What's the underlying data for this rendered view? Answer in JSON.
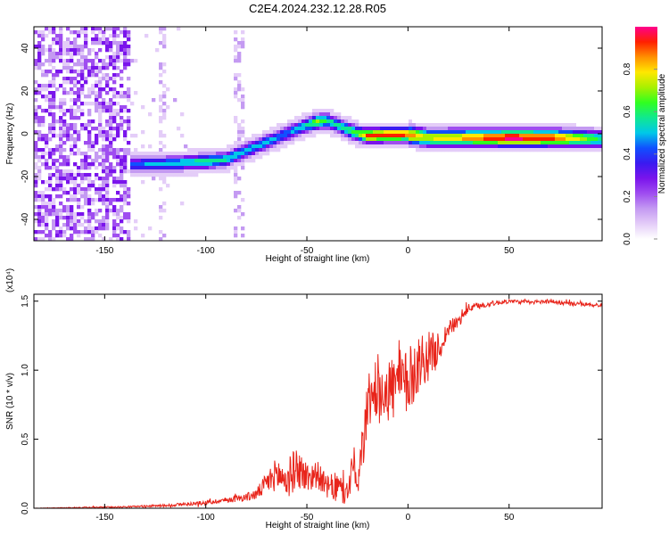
{
  "title": "C2E4.2024.232.12.28.R05",
  "colors": {
    "snr_line": "#e8241a",
    "colormap": [
      "#ffffff",
      "#e4cdf8",
      "#c49af2",
      "#9f4df0",
      "#7a14ec",
      "#3a1af0",
      "#1050ff",
      "#00c8e8",
      "#10e890",
      "#30ff20",
      "#a8f000",
      "#ffe800",
      "#ff9000",
      "#ff2000",
      "#ff008c"
    ]
  },
  "chart_data": [
    {
      "type": "heatmap",
      "title": "C2E4.2024.232.12.28.R05",
      "xlabel": "Height of straight line (km)",
      "ylabel": "Frequency (Hz)",
      "xlim": [
        -185,
        96
      ],
      "ylim": [
        -50,
        50
      ],
      "x_ticks": [
        -150,
        -100,
        -50,
        0,
        50
      ],
      "x_tick_labels": [
        "-150",
        "-100",
        "-50",
        "0",
        "50"
      ],
      "y_ticks": [
        -40,
        -20,
        0,
        20,
        40
      ],
      "y_tick_labels": [
        "-40",
        "-20",
        "0",
        "20",
        "40"
      ],
      "colorbar": {
        "label": "Normalized spectral amplitude",
        "range": [
          0,
          1
        ],
        "ticks": [
          0.0,
          0.2,
          0.4,
          0.6,
          0.8
        ],
        "tick_labels": [
          "0.0",
          "0.2",
          "0.4",
          "0.6",
          "0.8"
        ]
      },
      "ridge": {
        "description_x": [
          -136,
          -120,
          -100,
          -90,
          -80,
          -70,
          -60,
          -50,
          -45,
          -40,
          -35,
          -30,
          -25,
          -20,
          -10,
          0,
          10,
          30,
          50,
          70,
          95
        ],
        "frequency_y": [
          -14.5,
          -14,
          -13,
          -12,
          -8,
          -4,
          0,
          4,
          5.5,
          6,
          4,
          2,
          0,
          -1,
          -0.5,
          -0.5,
          -2,
          -2,
          -2,
          -2,
          -2.5
        ],
        "amplitude": [
          0.45,
          0.5,
          0.6,
          0.55,
          0.5,
          0.5,
          0.45,
          0.55,
          0.7,
          0.6,
          0.55,
          0.6,
          0.65,
          0.9,
          0.95,
          0.9,
          0.75,
          0.85,
          1.0,
          0.95,
          0.6
        ]
      },
      "noise_region": {
        "x_range": [
          -185,
          -136
        ],
        "amplitude_range": [
          0.05,
          0.3
        ]
      }
    },
    {
      "type": "line",
      "xlabel": "Height of straight line (km)",
      "ylabel": "SNR (10 * v/v)",
      "y_scale_label": "(x10⁴)",
      "xlim": [
        -185,
        96
      ],
      "ylim": [
        0,
        1.55
      ],
      "x_ticks": [
        -150,
        -100,
        -50,
        0,
        50
      ],
      "x_tick_labels": [
        "-150",
        "-100",
        "-50",
        "0",
        "50"
      ],
      "y_ticks": [
        0.0,
        0.5,
        1.0,
        1.5
      ],
      "y_tick_labels": [
        "0.0",
        "0.5",
        "1.0",
        "1.5"
      ],
      "series": [
        {
          "x": [
            -185,
            -160,
            -140,
            -120,
            -100,
            -90,
            -80,
            -75,
            -70,
            -65,
            -60,
            -55,
            -50,
            -45,
            -40,
            -35,
            -30,
            -27,
            -25,
            -22,
            -20,
            -15,
            -10,
            -5,
            0,
            5,
            10,
            15,
            20,
            25,
            30,
            40,
            50,
            60,
            70,
            80,
            96
          ],
          "values": [
            0.0,
            0.005,
            0.01,
            0.02,
            0.04,
            0.06,
            0.08,
            0.1,
            0.18,
            0.25,
            0.2,
            0.3,
            0.22,
            0.25,
            0.15,
            0.15,
            0.1,
            0.35,
            0.12,
            0.5,
            0.75,
            0.9,
            0.85,
            0.9,
            0.9,
            1.05,
            1.1,
            1.15,
            1.3,
            1.35,
            1.45,
            1.48,
            1.5,
            1.49,
            1.5,
            1.48,
            1.47
          ],
          "spread": [
            0.0,
            0.005,
            0.005,
            0.01,
            0.015,
            0.02,
            0.03,
            0.04,
            0.08,
            0.12,
            0.15,
            0.15,
            0.12,
            0.1,
            0.08,
            0.12,
            0.1,
            0.15,
            0.08,
            0.2,
            0.2,
            0.22,
            0.25,
            0.25,
            0.25,
            0.22,
            0.18,
            0.12,
            0.06,
            0.05,
            0.03,
            0.02,
            0.015,
            0.015,
            0.015,
            0.015,
            0.015
          ]
        }
      ]
    }
  ]
}
